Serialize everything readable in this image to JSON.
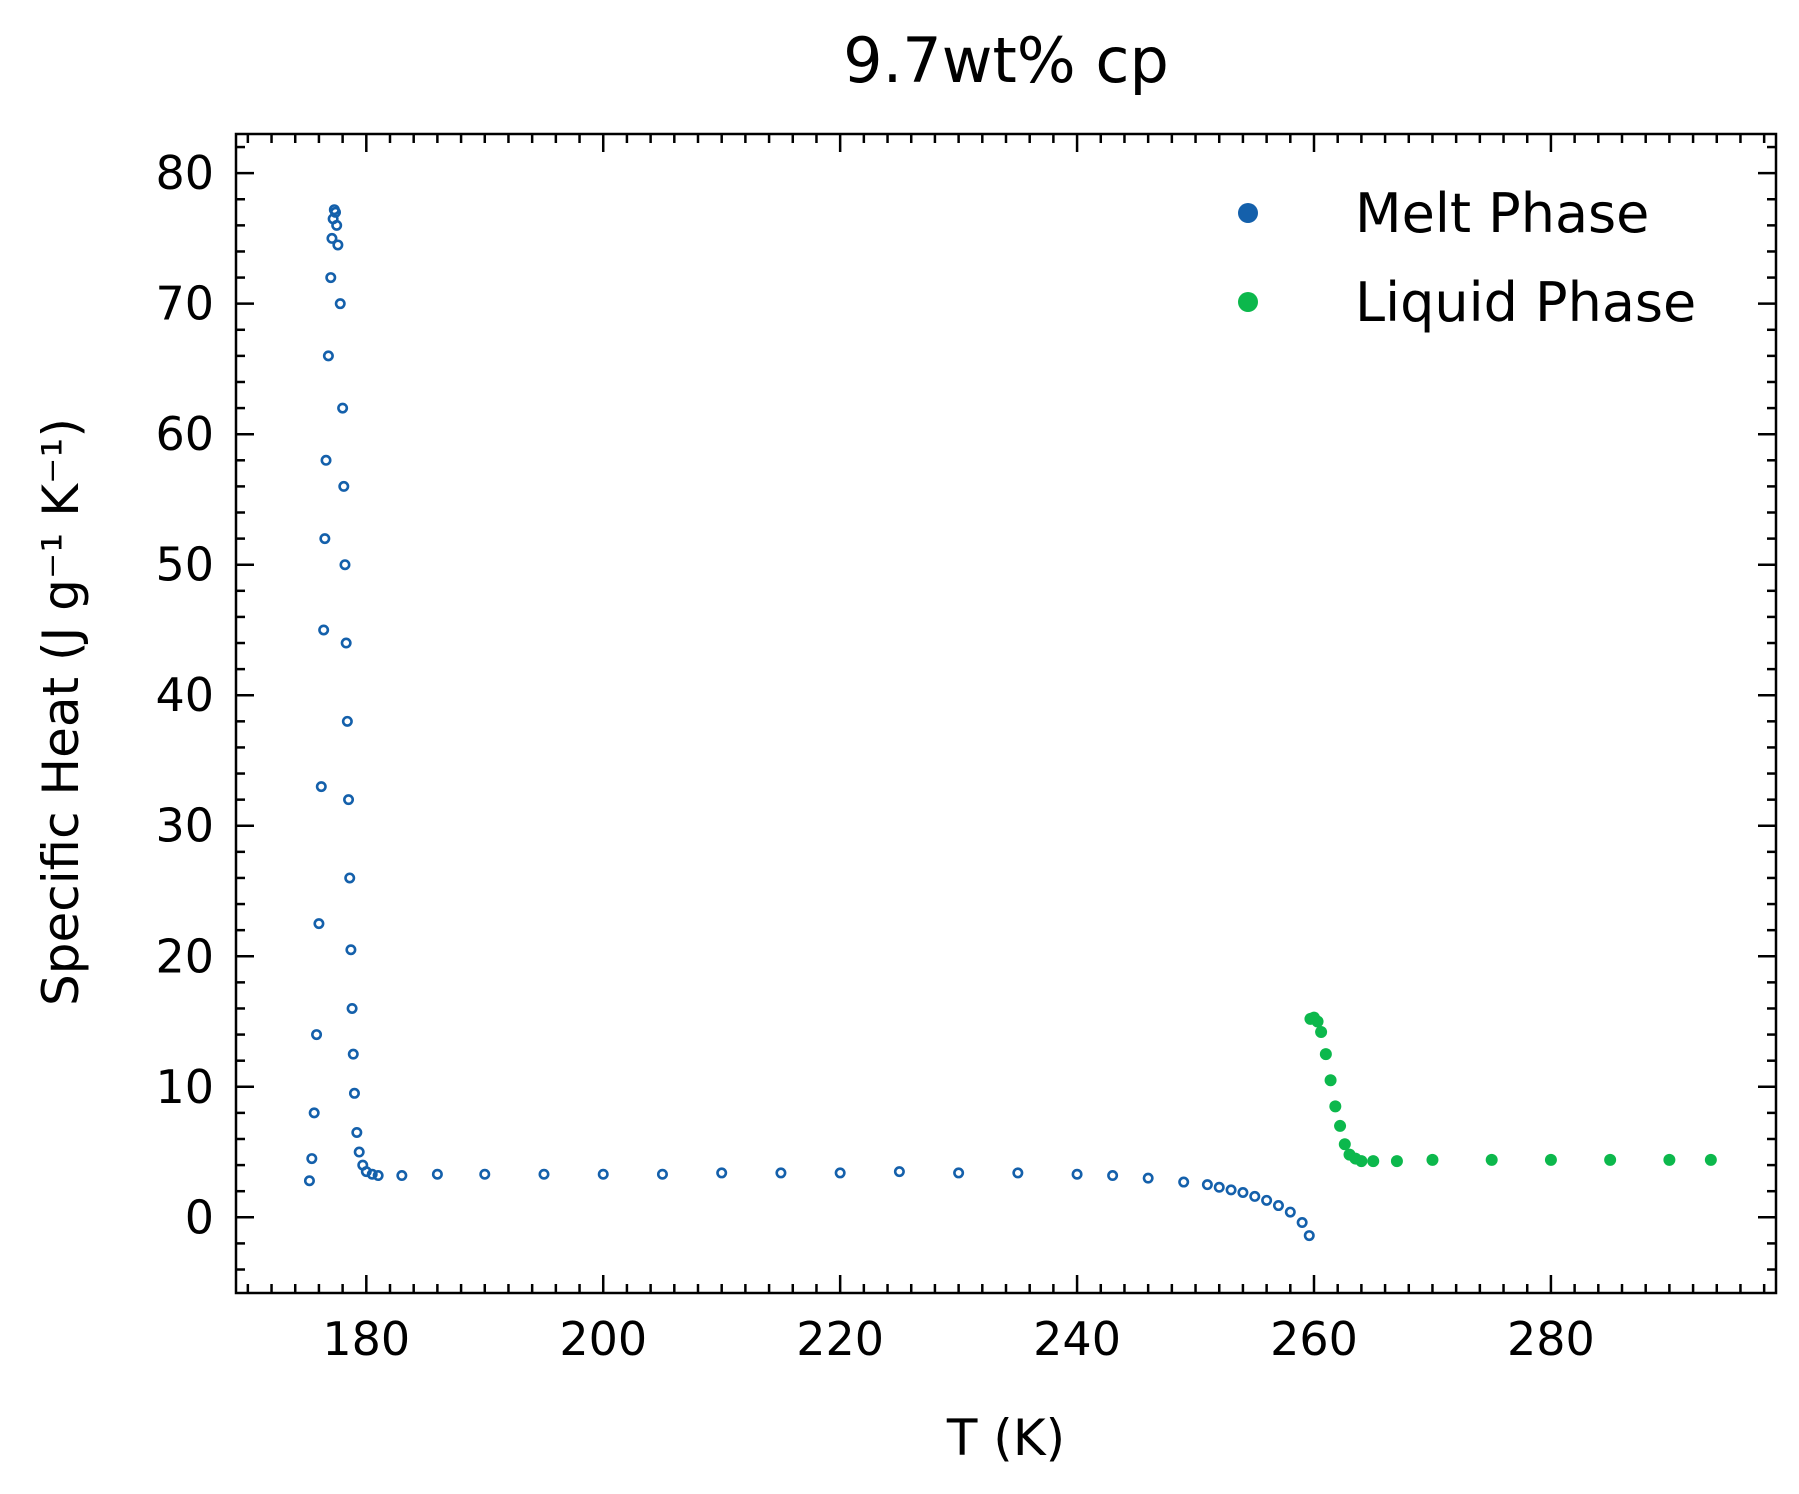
{
  "chart_data": {
    "type": "scatter",
    "title": "9.7wt% cp",
    "xlabel": "T (K)",
    "ylabel": "Specific Heat (J g⁻¹ K⁻¹)",
    "xlim": [
      169,
      299
    ],
    "ylim": [
      -5.8,
      83
    ],
    "xticks": [
      180,
      200,
      220,
      240,
      260,
      280
    ],
    "xtick_labels": [
      "180",
      "200",
      "220",
      "240",
      "260",
      "280"
    ],
    "yticks": [
      0,
      10,
      20,
      30,
      40,
      50,
      60,
      70,
      80
    ],
    "ytick_labels": [
      "0",
      "10",
      "20",
      "30",
      "40",
      "50",
      "60",
      "70",
      "80"
    ],
    "x_minor_step": 2,
    "y_minor_step": 2,
    "grid": false,
    "legend_position": "top-right",
    "series": [
      {
        "name": "Melt Phase",
        "color": "#1460ab",
        "marker": "hollow-circle",
        "x": [
          175.2,
          175.4,
          175.6,
          175.8,
          176.0,
          176.2,
          176.4,
          176.5,
          176.6,
          176.8,
          177.0,
          177.1,
          177.2,
          177.3,
          177.4,
          177.5,
          177.6,
          177.8,
          178.0,
          178.1,
          178.2,
          178.3,
          178.4,
          178.5,
          178.6,
          178.7,
          178.8,
          178.9,
          179.0,
          179.2,
          179.4,
          179.7,
          180.0,
          180.5,
          181.0,
          183,
          186,
          190,
          195,
          200,
          205,
          210,
          215,
          220,
          225,
          230,
          235,
          240,
          243,
          246,
          249,
          251,
          252,
          253,
          254,
          255,
          256,
          257,
          258,
          259,
          259.6
        ],
        "y": [
          2.8,
          4.5,
          8.0,
          14.0,
          22.5,
          33.0,
          45.0,
          52.0,
          58.0,
          66.0,
          72.0,
          75.0,
          76.5,
          77.2,
          77.0,
          76.0,
          74.5,
          70.0,
          62.0,
          56.0,
          50.0,
          44.0,
          38.0,
          32.0,
          26.0,
          20.5,
          16.0,
          12.5,
          9.5,
          6.5,
          5.0,
          4.0,
          3.5,
          3.3,
          3.2,
          3.2,
          3.3,
          3.3,
          3.3,
          3.3,
          3.3,
          3.4,
          3.4,
          3.4,
          3.5,
          3.4,
          3.4,
          3.3,
          3.2,
          3.0,
          2.7,
          2.5,
          2.3,
          2.1,
          1.9,
          1.6,
          1.3,
          0.9,
          0.4,
          -0.4,
          -1.4
        ]
      },
      {
        "name": "Liquid Phase",
        "color": "#0cb84c",
        "marker": "filled-circle",
        "x": [
          259.7,
          260.0,
          260.3,
          260.6,
          261.0,
          261.4,
          261.8,
          262.2,
          262.6,
          263.0,
          263.5,
          264.0,
          265,
          267,
          270,
          275,
          280,
          285,
          290,
          293.5
        ],
        "y": [
          15.2,
          15.3,
          15.0,
          14.2,
          12.5,
          10.5,
          8.5,
          7.0,
          5.6,
          4.8,
          4.5,
          4.3,
          4.3,
          4.3,
          4.4,
          4.4,
          4.4,
          4.4,
          4.4,
          4.4
        ]
      }
    ]
  }
}
